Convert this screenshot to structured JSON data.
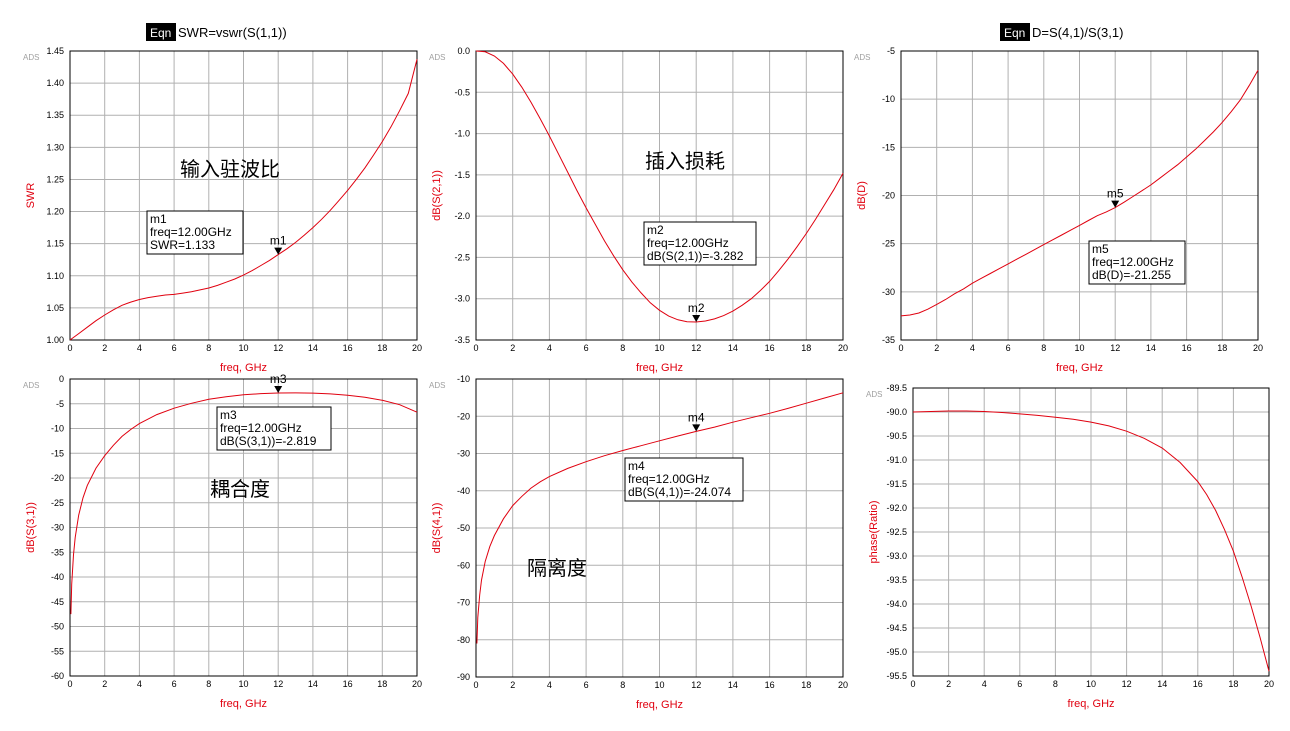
{
  "equations": [
    {
      "badge": "Eqn",
      "text": "SWR=vswr(S(1,1))"
    },
    {
      "badge": "Eqn",
      "text": "D=S(4,1)/S(3,1)"
    }
  ],
  "chart_data": [
    {
      "type": "line",
      "watermark": "ADS",
      "xlabel": "freq, GHz",
      "ylabel": "SWR",
      "xlim": [
        0,
        20
      ],
      "ylim": [
        1.0,
        1.45
      ],
      "xticks": [
        0,
        2,
        4,
        6,
        8,
        10,
        12,
        14,
        16,
        18,
        20
      ],
      "yticks": [
        1.0,
        1.05,
        1.1,
        1.15,
        1.2,
        1.25,
        1.3,
        1.35,
        1.4,
        1.45
      ],
      "ytick_labels": [
        "1.00",
        "1.05",
        "1.10",
        "1.15",
        "1.20",
        "1.25",
        "1.30",
        "1.35",
        "1.40",
        "1.45"
      ],
      "series": [
        {
          "color": "#e0000f",
          "x": [
            0,
            0.5,
            1,
            1.5,
            2,
            2.5,
            3,
            3.5,
            4,
            4.5,
            5,
            5.5,
            6,
            6.5,
            7,
            7.5,
            8,
            8.5,
            9,
            9.5,
            10,
            10.5,
            11,
            11.5,
            12,
            12.5,
            13,
            13.5,
            14,
            14.5,
            15,
            15.5,
            16,
            16.5,
            17,
            17.5,
            18,
            18.5,
            19,
            19.5,
            20
          ],
          "y": [
            1.0,
            1.01,
            1.02,
            1.03,
            1.039,
            1.047,
            1.054,
            1.059,
            1.063,
            1.066,
            1.068,
            1.07,
            1.071,
            1.073,
            1.075,
            1.078,
            1.081,
            1.085,
            1.09,
            1.095,
            1.101,
            1.108,
            1.116,
            1.124,
            1.133,
            1.142,
            1.152,
            1.163,
            1.175,
            1.188,
            1.202,
            1.217,
            1.233,
            1.25,
            1.268,
            1.288,
            1.309,
            1.332,
            1.357,
            1.384,
            1.437
          ]
        }
      ],
      "marker": {
        "name": "m1",
        "x": 12,
        "y": 1.133,
        "box": [
          "m1",
          "freq=12.00GHz",
          "SWR=1.133"
        ]
      },
      "annotation": "输入驻波比"
    },
    {
      "type": "line",
      "watermark": "ADS",
      "xlabel": "freq, GHz",
      "ylabel": "dB(S(2,1))",
      "xlim": [
        0,
        20
      ],
      "ylim": [
        -3.5,
        0.0
      ],
      "xticks": [
        0,
        2,
        4,
        6,
        8,
        10,
        12,
        14,
        16,
        18,
        20
      ],
      "yticks": [
        -3.5,
        -3.0,
        -2.5,
        -2.0,
        -1.5,
        -1.0,
        -0.5,
        0.0
      ],
      "ytick_labels": [
        "-3.5",
        "-3.0",
        "-2.5",
        "-2.0",
        "-1.5",
        "-1.0",
        "-0.5",
        "0.0"
      ],
      "series": [
        {
          "color": "#e0000f",
          "x": [
            0,
            0.5,
            1,
            1.5,
            2,
            2.5,
            3,
            3.5,
            4,
            4.5,
            5,
            5.5,
            6,
            6.5,
            7,
            7.5,
            8,
            8.5,
            9,
            9.5,
            10,
            10.5,
            11,
            11.5,
            12,
            12.5,
            13,
            13.5,
            14,
            14.5,
            15,
            15.5,
            16,
            16.5,
            17,
            17.5,
            18,
            18.5,
            19,
            19.5,
            20
          ],
          "y": [
            0.0,
            -0.01,
            -0.06,
            -0.15,
            -0.28,
            -0.44,
            -0.62,
            -0.82,
            -1.03,
            -1.25,
            -1.47,
            -1.69,
            -1.9,
            -2.1,
            -2.3,
            -2.48,
            -2.65,
            -2.8,
            -2.93,
            -3.05,
            -3.14,
            -3.21,
            -3.255,
            -3.28,
            -3.282,
            -3.27,
            -3.245,
            -3.205,
            -3.15,
            -3.08,
            -3.0,
            -2.9,
            -2.79,
            -2.66,
            -2.52,
            -2.37,
            -2.21,
            -2.04,
            -1.86,
            -1.68,
            -1.48
          ]
        }
      ],
      "marker": {
        "name": "m2",
        "x": 12,
        "y": -3.282,
        "box": [
          "m2",
          "freq=12.00GHz",
          "dB(S(2,1))=-3.282"
        ]
      },
      "annotation": "插入损耗"
    },
    {
      "type": "line",
      "watermark": "ADS",
      "xlabel": "freq, GHz",
      "ylabel": "dB(D)",
      "xlim": [
        0,
        20
      ],
      "ylim": [
        -35,
        -5
      ],
      "xticks": [
        0,
        2,
        4,
        6,
        8,
        10,
        12,
        14,
        16,
        18,
        20
      ],
      "yticks": [
        -35,
        -30,
        -25,
        -20,
        -15,
        -10,
        -5
      ],
      "ytick_labels": [
        "-35",
        "-30",
        "-25",
        "-20",
        "-15",
        "-10",
        "-5"
      ],
      "series": [
        {
          "color": "#e0000f",
          "x": [
            0,
            0.5,
            1,
            1.5,
            2,
            2.5,
            3,
            3.5,
            4,
            4.5,
            5,
            5.5,
            6,
            6.5,
            7,
            7.5,
            8,
            8.5,
            9,
            9.5,
            10,
            10.5,
            11,
            11.5,
            12,
            12.5,
            13,
            13.5,
            14,
            14.5,
            15,
            15.5,
            16,
            16.5,
            17,
            17.5,
            18,
            18.5,
            19,
            19.5,
            20
          ],
          "y": [
            -32.5,
            -32.4,
            -32.2,
            -31.8,
            -31.3,
            -30.8,
            -30.2,
            -29.7,
            -29.1,
            -28.6,
            -28.1,
            -27.6,
            -27.1,
            -26.6,
            -26.1,
            -25.6,
            -25.1,
            -24.6,
            -24.1,
            -23.6,
            -23.1,
            -22.6,
            -22.1,
            -21.7,
            -21.255,
            -20.7,
            -20.1,
            -19.5,
            -18.9,
            -18.2,
            -17.5,
            -16.8,
            -16.0,
            -15.2,
            -14.3,
            -13.4,
            -12.4,
            -11.3,
            -10.1,
            -8.6,
            -7.0
          ]
        }
      ],
      "marker": {
        "name": "m5",
        "x": 12,
        "y": -21.255,
        "box": [
          "m5",
          "freq=12.00GHz",
          "dB(D)=-21.255"
        ]
      },
      "annotation": ""
    },
    {
      "type": "line",
      "watermark": "ADS",
      "xlabel": "freq, GHz",
      "ylabel": "dB(S(3,1))",
      "xlim": [
        0,
        20
      ],
      "ylim": [
        -60,
        0
      ],
      "xticks": [
        0,
        2,
        4,
        6,
        8,
        10,
        12,
        14,
        16,
        18,
        20
      ],
      "yticks": [
        -60,
        -55,
        -50,
        -45,
        -40,
        -35,
        -30,
        -25,
        -20,
        -15,
        -10,
        -5,
        0
      ],
      "ytick_labels": [
        "-60",
        "-55",
        "-50",
        "-45",
        "-40",
        "-35",
        "-30",
        "-25",
        "-20",
        "-15",
        "-10",
        "-5",
        "0"
      ],
      "series": [
        {
          "color": "#e0000f",
          "x": [
            0.05,
            0.1,
            0.2,
            0.3,
            0.5,
            0.75,
            1,
            1.5,
            2,
            2.5,
            3,
            3.5,
            4,
            5,
            6,
            7,
            8,
            9,
            10,
            11,
            12,
            13,
            14,
            15,
            16,
            17,
            18,
            19,
            20
          ],
          "y": [
            -47.5,
            -41.5,
            -35.5,
            -32.0,
            -27.5,
            -24.0,
            -21.5,
            -18.0,
            -15.5,
            -13.4,
            -11.6,
            -10.2,
            -9.0,
            -7.2,
            -5.9,
            -4.9,
            -4.1,
            -3.6,
            -3.2,
            -2.95,
            -2.819,
            -2.8,
            -2.85,
            -3.0,
            -3.3,
            -3.7,
            -4.3,
            -5.2,
            -6.7
          ]
        }
      ],
      "marker": {
        "name": "m3",
        "x": 12,
        "y": -2.819,
        "box": [
          "m3",
          "freq=12.00GHz",
          "dB(S(3,1))=-2.819"
        ]
      },
      "annotation": "耦合度"
    },
    {
      "type": "line",
      "watermark": "ADS",
      "xlabel": "freq, GHz",
      "ylabel": "dB(S(4,1))",
      "xlim": [
        0,
        20
      ],
      "ylim": [
        -90,
        -10
      ],
      "xticks": [
        0,
        2,
        4,
        6,
        8,
        10,
        12,
        14,
        16,
        18,
        20
      ],
      "yticks": [
        -90,
        -80,
        -70,
        -60,
        -50,
        -40,
        -30,
        -20,
        -10
      ],
      "ytick_labels": [
        "-90",
        "-80",
        "-70",
        "-60",
        "-50",
        "-40",
        "-30",
        "-20",
        "-10"
      ],
      "series": [
        {
          "color": "#e0000f",
          "x": [
            0.05,
            0.1,
            0.2,
            0.3,
            0.5,
            0.75,
            1,
            1.5,
            2,
            2.5,
            3,
            3.5,
            4,
            5,
            6,
            7,
            8,
            9,
            10,
            11,
            12,
            13,
            14,
            15,
            16,
            17,
            18,
            19,
            20
          ],
          "y": [
            -81.0,
            -74.0,
            -68.0,
            -64.0,
            -59.0,
            -55.0,
            -52.0,
            -47.5,
            -44.0,
            -41.5,
            -39.3,
            -37.6,
            -36.2,
            -34.0,
            -32.2,
            -30.6,
            -29.2,
            -27.9,
            -26.6,
            -25.3,
            -24.074,
            -22.9,
            -21.6,
            -20.4,
            -19.2,
            -17.9,
            -16.5,
            -15.1,
            -13.7
          ]
        }
      ],
      "marker": {
        "name": "m4",
        "x": 12,
        "y": -24.074,
        "box": [
          "m4",
          "freq=12.00GHz",
          "dB(S(4,1))=-24.074"
        ]
      },
      "annotation": "隔离度"
    },
    {
      "type": "line",
      "watermark": "ADS",
      "xlabel": "freq, GHz",
      "ylabel": "phase(Ratio)",
      "xlim": [
        0,
        20
      ],
      "ylim": [
        -95.5,
        -89.5
      ],
      "xticks": [
        0,
        2,
        4,
        6,
        8,
        10,
        12,
        14,
        16,
        18,
        20
      ],
      "yticks": [
        -95.5,
        -95.0,
        -94.5,
        -94.0,
        -93.5,
        -93.0,
        -92.5,
        -92.0,
        -91.5,
        -91.0,
        -90.5,
        -90.0,
        -89.5
      ],
      "ytick_labels": [
        "-95.5",
        "-95.0",
        "-94.5",
        "-94.0",
        "-93.5",
        "-93.0",
        "-92.5",
        "-92.0",
        "-91.5",
        "-91.0",
        "-90.5",
        "-90.0",
        "-89.5"
      ],
      "series": [
        {
          "color": "#e0000f",
          "x": [
            0,
            1,
            2,
            3,
            4,
            5,
            6,
            7,
            8,
            9,
            10,
            11,
            12,
            13,
            14,
            15,
            16,
            16.5,
            17,
            17.5,
            18,
            18.5,
            19,
            19.5,
            20
          ],
          "y": [
            -90.0,
            -89.99,
            -89.98,
            -89.98,
            -89.99,
            -90.01,
            -90.04,
            -90.07,
            -90.11,
            -90.15,
            -90.21,
            -90.29,
            -90.4,
            -90.55,
            -90.75,
            -91.05,
            -91.45,
            -91.72,
            -92.05,
            -92.45,
            -92.9,
            -93.45,
            -94.05,
            -94.7,
            -95.4
          ]
        }
      ],
      "marker": null,
      "annotation": ""
    }
  ]
}
